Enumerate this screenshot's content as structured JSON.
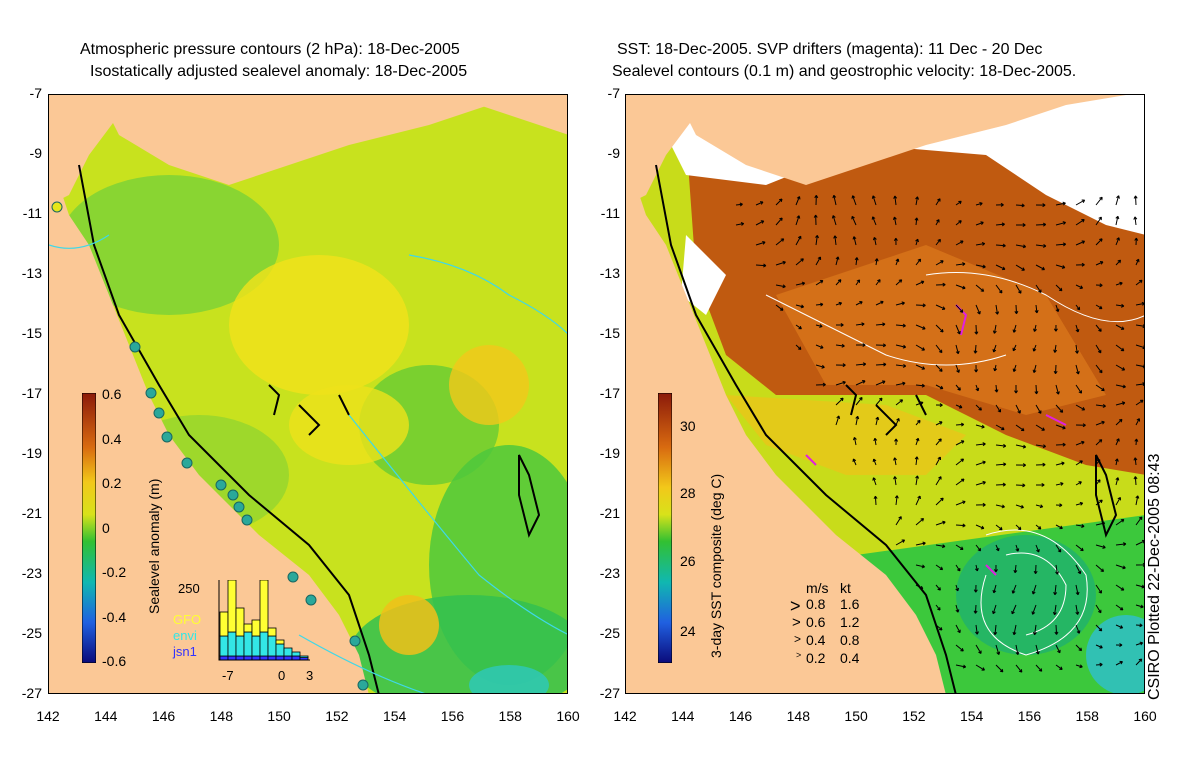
{
  "left": {
    "title_line1": "Atmospheric pressure contours (2 hPa): 18-Dec-2005",
    "title_line2": "Isostatically adjusted sealevel anomaly: 18-Dec-2005",
    "colorbar_label": "Sealevel anomaly (m)",
    "colorbar_ticks": [
      "0.6",
      "0.4",
      "0.2",
      "0",
      "-0.2",
      "-0.4",
      "-0.6"
    ],
    "histogram": {
      "ymax_label": "250",
      "x_ticks": [
        "-7",
        "0",
        "3"
      ],
      "legend": [
        {
          "name": "GFO",
          "color": "#ffff33"
        },
        {
          "name": "envi",
          "color": "#33e6e6"
        },
        {
          "name": "jsn1",
          "color": "#3333ff"
        }
      ],
      "stacks": [
        [
          0.05,
          0.25,
          0.3
        ],
        [
          0.05,
          0.3,
          0.65
        ],
        [
          0.05,
          0.25,
          0.35
        ],
        [
          0.05,
          0.3,
          0.1
        ],
        [
          0.05,
          0.25,
          0.2
        ],
        [
          0.05,
          0.3,
          0.65
        ],
        [
          0.05,
          0.25,
          0.1
        ],
        [
          0.05,
          0.15,
          0.05
        ],
        [
          0.05,
          0.1,
          0.0
        ],
        [
          0.05,
          0.05,
          0.0
        ],
        [
          0.03,
          0.02,
          0.0
        ]
      ]
    }
  },
  "right": {
    "title_line1": "SST: 18-Dec-2005. SVP drifters (magenta): 11 Dec - 20 Dec",
    "title_line2": "Sealevel contours (0.1 m) and geostrophic velocity: 18-Dec-2005.",
    "colorbar_label": "3-day SST composite (deg C)",
    "colorbar_ticks": [
      "30",
      "28",
      "26",
      "24"
    ],
    "velocity_legend": {
      "header_ms": "m/s",
      "header_kt": "kt",
      "rows": [
        {
          "ms": "0.8",
          "kt": "1.6"
        },
        {
          "ms": "0.6",
          "kt": "1.2"
        },
        {
          "ms": "0.4",
          "kt": "0.8"
        },
        {
          "ms": "0.2",
          "kt": "0.4"
        }
      ]
    }
  },
  "axes": {
    "y_ticks": [
      "-7",
      "-9",
      "-11",
      "-13",
      "-15",
      "-17",
      "-19",
      "-21",
      "-23",
      "-25",
      "-27"
    ],
    "x_ticks": [
      "142",
      "144",
      "146",
      "148",
      "150",
      "152",
      "154",
      "156",
      "158",
      "160"
    ],
    "lon_range": [
      142,
      160
    ],
    "lat_range": [
      -27,
      -7
    ]
  },
  "credit": "CSIRO Plotted 22-Dec-2005 08:43",
  "colors": {
    "land": "#fbc896",
    "ocean_mid": "#d8e21a",
    "ocean_low": "#2ec832",
    "sst_warm": "#b84a10",
    "sst_cool": "#3cc83c",
    "contour_cyan": "#3fd8e8"
  }
}
